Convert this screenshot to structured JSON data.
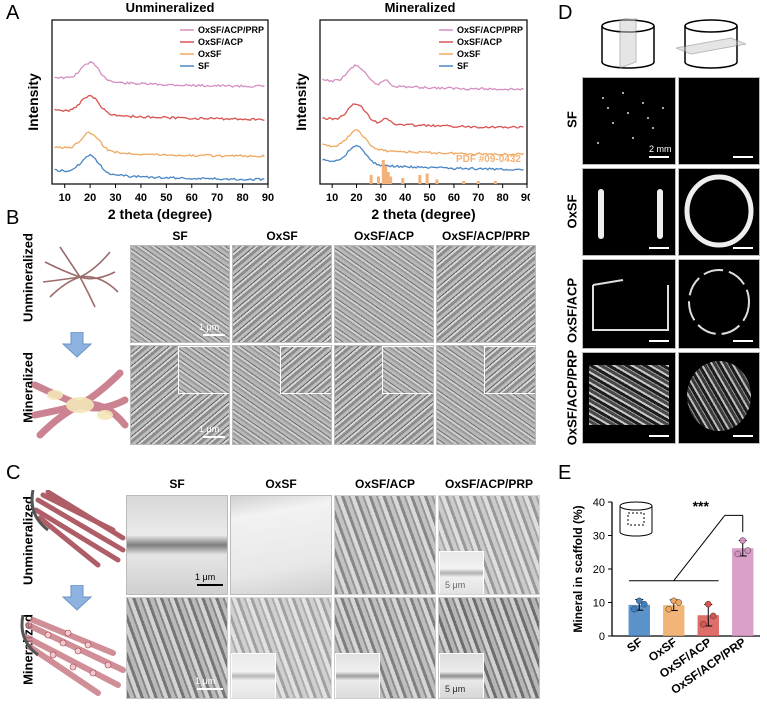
{
  "panel_labels": {
    "a": "A",
    "b": "B",
    "c": "C",
    "d": "D",
    "e": "E"
  },
  "chart_data": [
    {
      "type": "line",
      "title": "Unmineralized",
      "xlabel": "2 theta (degree)",
      "ylabel": "Intensity",
      "x_ticks": [
        "10",
        "20",
        "30",
        "40",
        "50",
        "60",
        "70",
        "80",
        "90"
      ],
      "xlim": [
        5,
        90
      ],
      "series": [
        {
          "name": "OxSF/ACP/PRP",
          "color": "#d58fc0",
          "peak_at": 20
        },
        {
          "name": "OxSF/ACP",
          "color": "#d9534f",
          "peak_at": 20
        },
        {
          "name": "OxSF",
          "color": "#f0a860",
          "peak_at": 20
        },
        {
          "name": "SF",
          "color": "#4a86c6",
          "peak_at": 20
        }
      ]
    },
    {
      "type": "line",
      "title": "Mineralized",
      "xlabel": "2 theta (degree)",
      "ylabel": "Intensity",
      "x_ticks": [
        "10",
        "20",
        "30",
        "40",
        "50",
        "60",
        "70",
        "80",
        "90"
      ],
      "xlim": [
        5,
        90
      ],
      "reference_label": "PDF #09-0432",
      "series": [
        {
          "name": "OxSF/ACP/PRP",
          "color": "#d58fc0",
          "peak_at": 20
        },
        {
          "name": "OxSF/ACP",
          "color": "#d9534f",
          "peak_at": 20
        },
        {
          "name": "OxSF",
          "color": "#f0a860",
          "peak_at": 20
        },
        {
          "name": "SF",
          "color": "#4a86c6",
          "peak_at": 20
        }
      ]
    },
    {
      "type": "bar",
      "ylabel": "Mineral in scaffold (%)",
      "categories": [
        "SF",
        "OxSF",
        "OxSF/ACP",
        "OxSF/ACP/PRP"
      ],
      "values": [
        9.3,
        9.2,
        6.2,
        26.2
      ],
      "errors": [
        1.6,
        1.6,
        3.2,
        2.3
      ],
      "points": [
        [
          8.0,
          10.5,
          9.5
        ],
        [
          8.0,
          10.5,
          10.0
        ],
        [
          3.5,
          9.5,
          6.0
        ],
        [
          24.5,
          28.5,
          25.5
        ]
      ],
      "colors": [
        "#3f7fc1",
        "#f0a860",
        "#d9534f",
        "#d58fc0"
      ],
      "ylim": [
        0,
        40
      ],
      "y_ticks": [
        "0",
        "10",
        "20",
        "30",
        "40"
      ],
      "significance": "***"
    }
  ],
  "panel_b": {
    "columns": [
      "SF",
      "OxSF",
      "OxSF/ACP",
      "OxSF/ACP/PRP"
    ],
    "rows": [
      "Unmineralized",
      "Mineralized"
    ],
    "scale": "1 μm"
  },
  "panel_c": {
    "columns": [
      "SF",
      "OxSF",
      "OxSF/ACP",
      "OxSF/ACP/PRP"
    ],
    "rows": [
      "Unmineralized",
      "Mineralized"
    ],
    "scale": "1 μm",
    "inset_scale": "5 μm"
  },
  "panel_d": {
    "rows": [
      "SF",
      "OxSF",
      "OxSF/ACP",
      "OxSF/ACP/PRP"
    ],
    "scale": "2 mm"
  }
}
